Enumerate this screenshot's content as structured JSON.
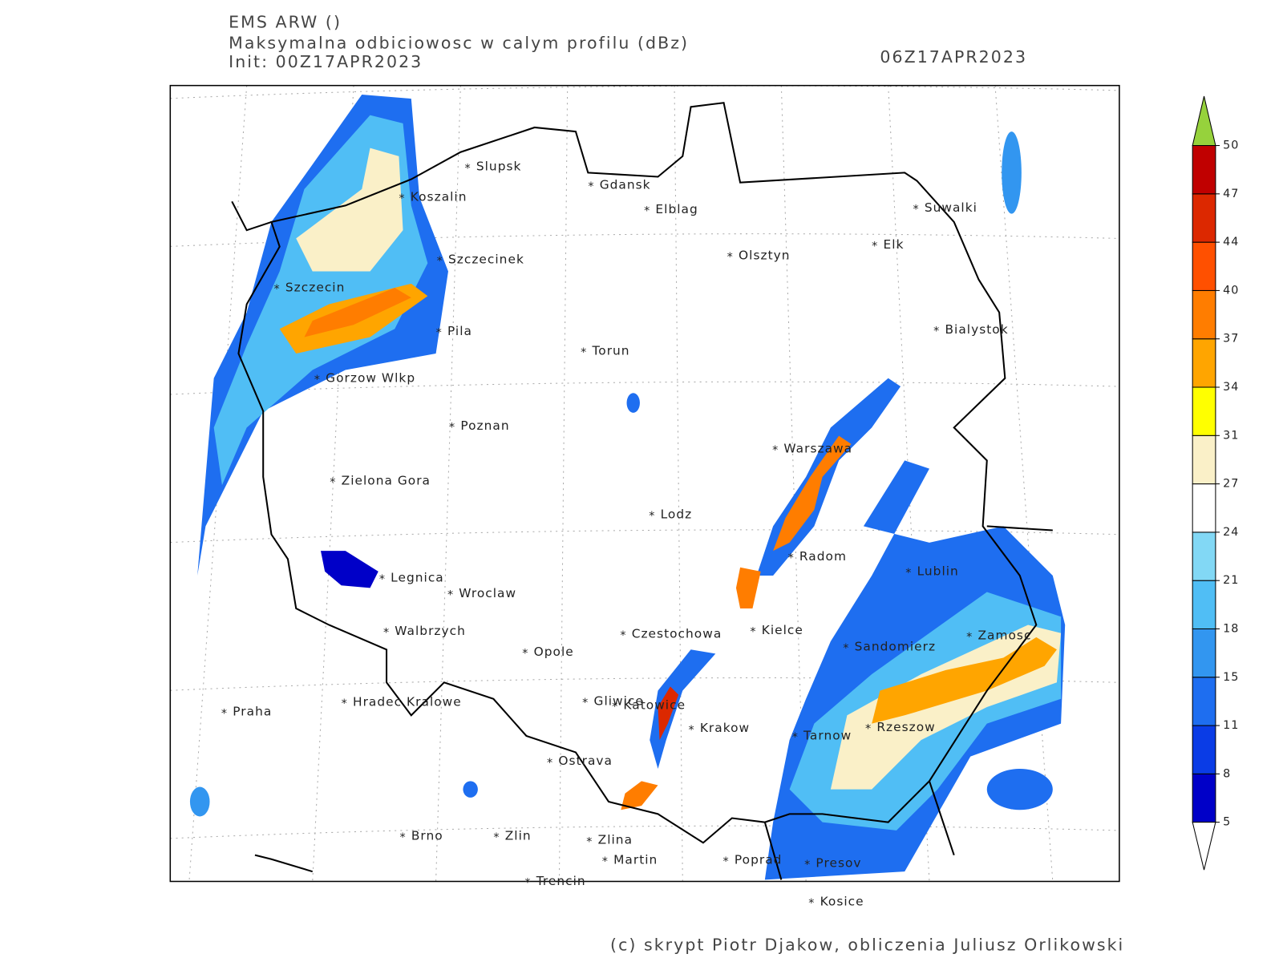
{
  "header": {
    "model": "EMS ARW ()",
    "field": "Maksymalna odbiciowosc w calym profilu (dBz)",
    "init": "Init: 00Z17APR2023",
    "valid": "06Z17APR2023"
  },
  "cities": [
    "Slupsk",
    "Koszalin",
    "Gdansk",
    "Elblag",
    "Suwalki",
    "Elk",
    "Olsztyn",
    "Szczecinek",
    "Szczecin",
    "Pila",
    "Bialystok",
    "Torun",
    "Gorzow Wlkp",
    "Poznan",
    "Warszawa",
    "Zielona Gora",
    "Lodz",
    "Radom",
    "Lublin",
    "Legnica",
    "Wroclaw",
    "Walbrzych",
    "Czestochowa",
    "Kielce",
    "Zamosc",
    "Sandomierz",
    "Opole",
    "Praha",
    "Hradec Kralowe",
    "Gliwice",
    "Katowice",
    "Krakow",
    "Rzeszow",
    "Tarnow",
    "Ostrava",
    "Brno",
    "Zlin",
    "Zlina",
    "Martin",
    "Poprad",
    "Presov",
    "Trencin",
    "Kosice"
  ],
  "colorbar": {
    "ticks": [
      5,
      8,
      11,
      15,
      18,
      21,
      24,
      27,
      31,
      34,
      37,
      40,
      44,
      47,
      50
    ],
    "colors": [
      "#0000c8",
      "#0a3ce6",
      "#1e6ef0",
      "#3296f0",
      "#50bef5",
      "#82d8f5",
      "#ffffff",
      "#faf0c8",
      "#ffff00",
      "#ffa500",
      "#ff7d00",
      "#ff5000",
      "#dc2800",
      "#c00000"
    ],
    "under_color": "#ffffff",
    "over_color": "#96d23c"
  },
  "footer": "(c) skrypt Piotr Djakow, obliczenia Juliusz Orlikowski"
}
